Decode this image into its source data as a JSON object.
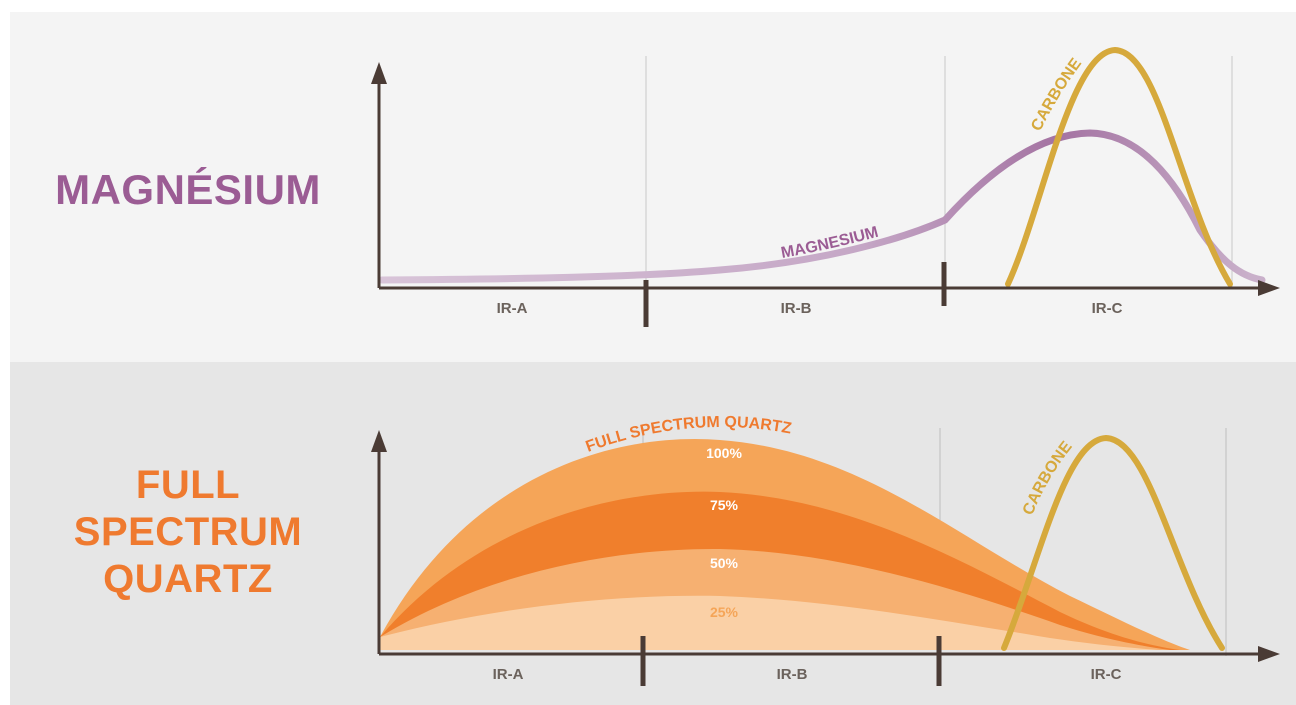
{
  "top_panel": {
    "title": "MAGNÉSIUM",
    "curve_labels": {
      "magnesium": "MAGNESIUM",
      "carbone": "CARBONE"
    },
    "bands": [
      "IR-A",
      "IR-B",
      "IR-C"
    ]
  },
  "bottom_panel": {
    "title_lines": [
      "FULL",
      "SPECTRUM",
      "QUARTZ"
    ],
    "curve_labels": {
      "full_spectrum": "FULL SPECTRUM QUARTZ",
      "carbone": "CARBONE"
    },
    "levels": [
      "100%",
      "75%",
      "50%",
      "25%"
    ],
    "bands": [
      "IR-A",
      "IR-B",
      "IR-C"
    ]
  },
  "colors": {
    "magnesium": "#b18cb2",
    "magnesium_title": "#9b5c94",
    "carbone": "#d6a93c",
    "quartz_title": "#ef7a2f",
    "level_100": "#f5a558",
    "level_75": "#f07f2c",
    "level_50": "#f6b071",
    "level_25": "#fad0a6",
    "axis": "#4a3b35"
  }
}
